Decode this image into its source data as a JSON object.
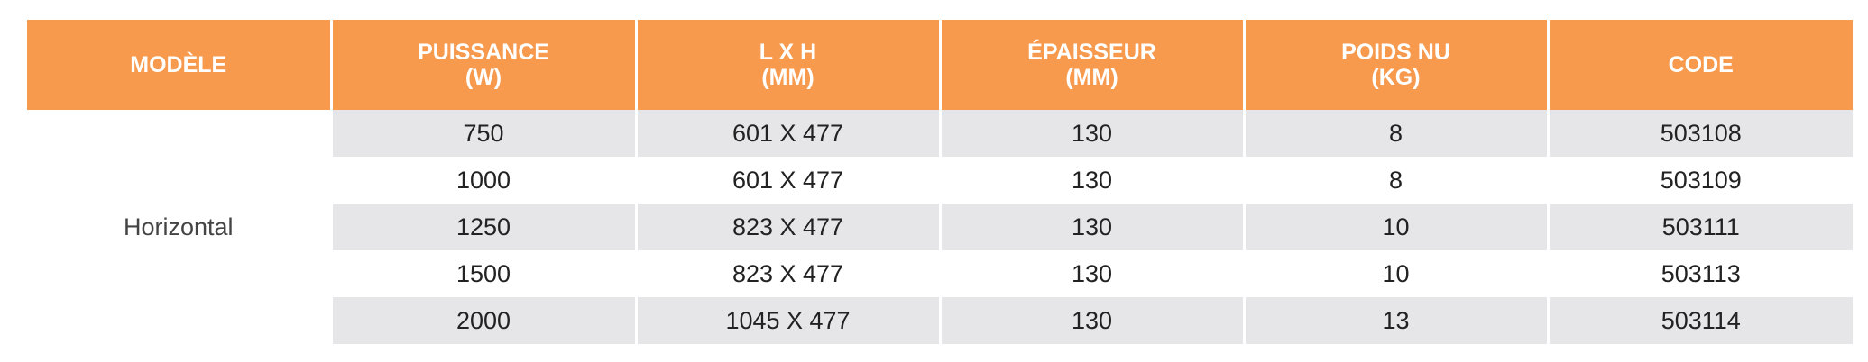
{
  "table": {
    "header": [
      [
        "MODÈLE"
      ],
      [
        "PUISSANCE",
        "(W)"
      ],
      [
        "L X H",
        "(MM)"
      ],
      [
        "ÉPAISSEUR",
        "(MM)"
      ],
      [
        "POIDS NU",
        "(KG)"
      ],
      [
        "CODE"
      ]
    ],
    "model": "Horizontal",
    "rows": [
      [
        "750",
        "601 X 477",
        "130",
        "8",
        "503108"
      ],
      [
        "1000",
        "601 X 477",
        "130",
        "8",
        "503109"
      ],
      [
        "1250",
        "823 X 477",
        "130",
        "10",
        "503111"
      ],
      [
        "1500",
        "823 X 477",
        "130",
        "10",
        "503113"
      ],
      [
        "2000",
        "1045 X 477",
        "130",
        "13",
        "503114"
      ]
    ]
  }
}
